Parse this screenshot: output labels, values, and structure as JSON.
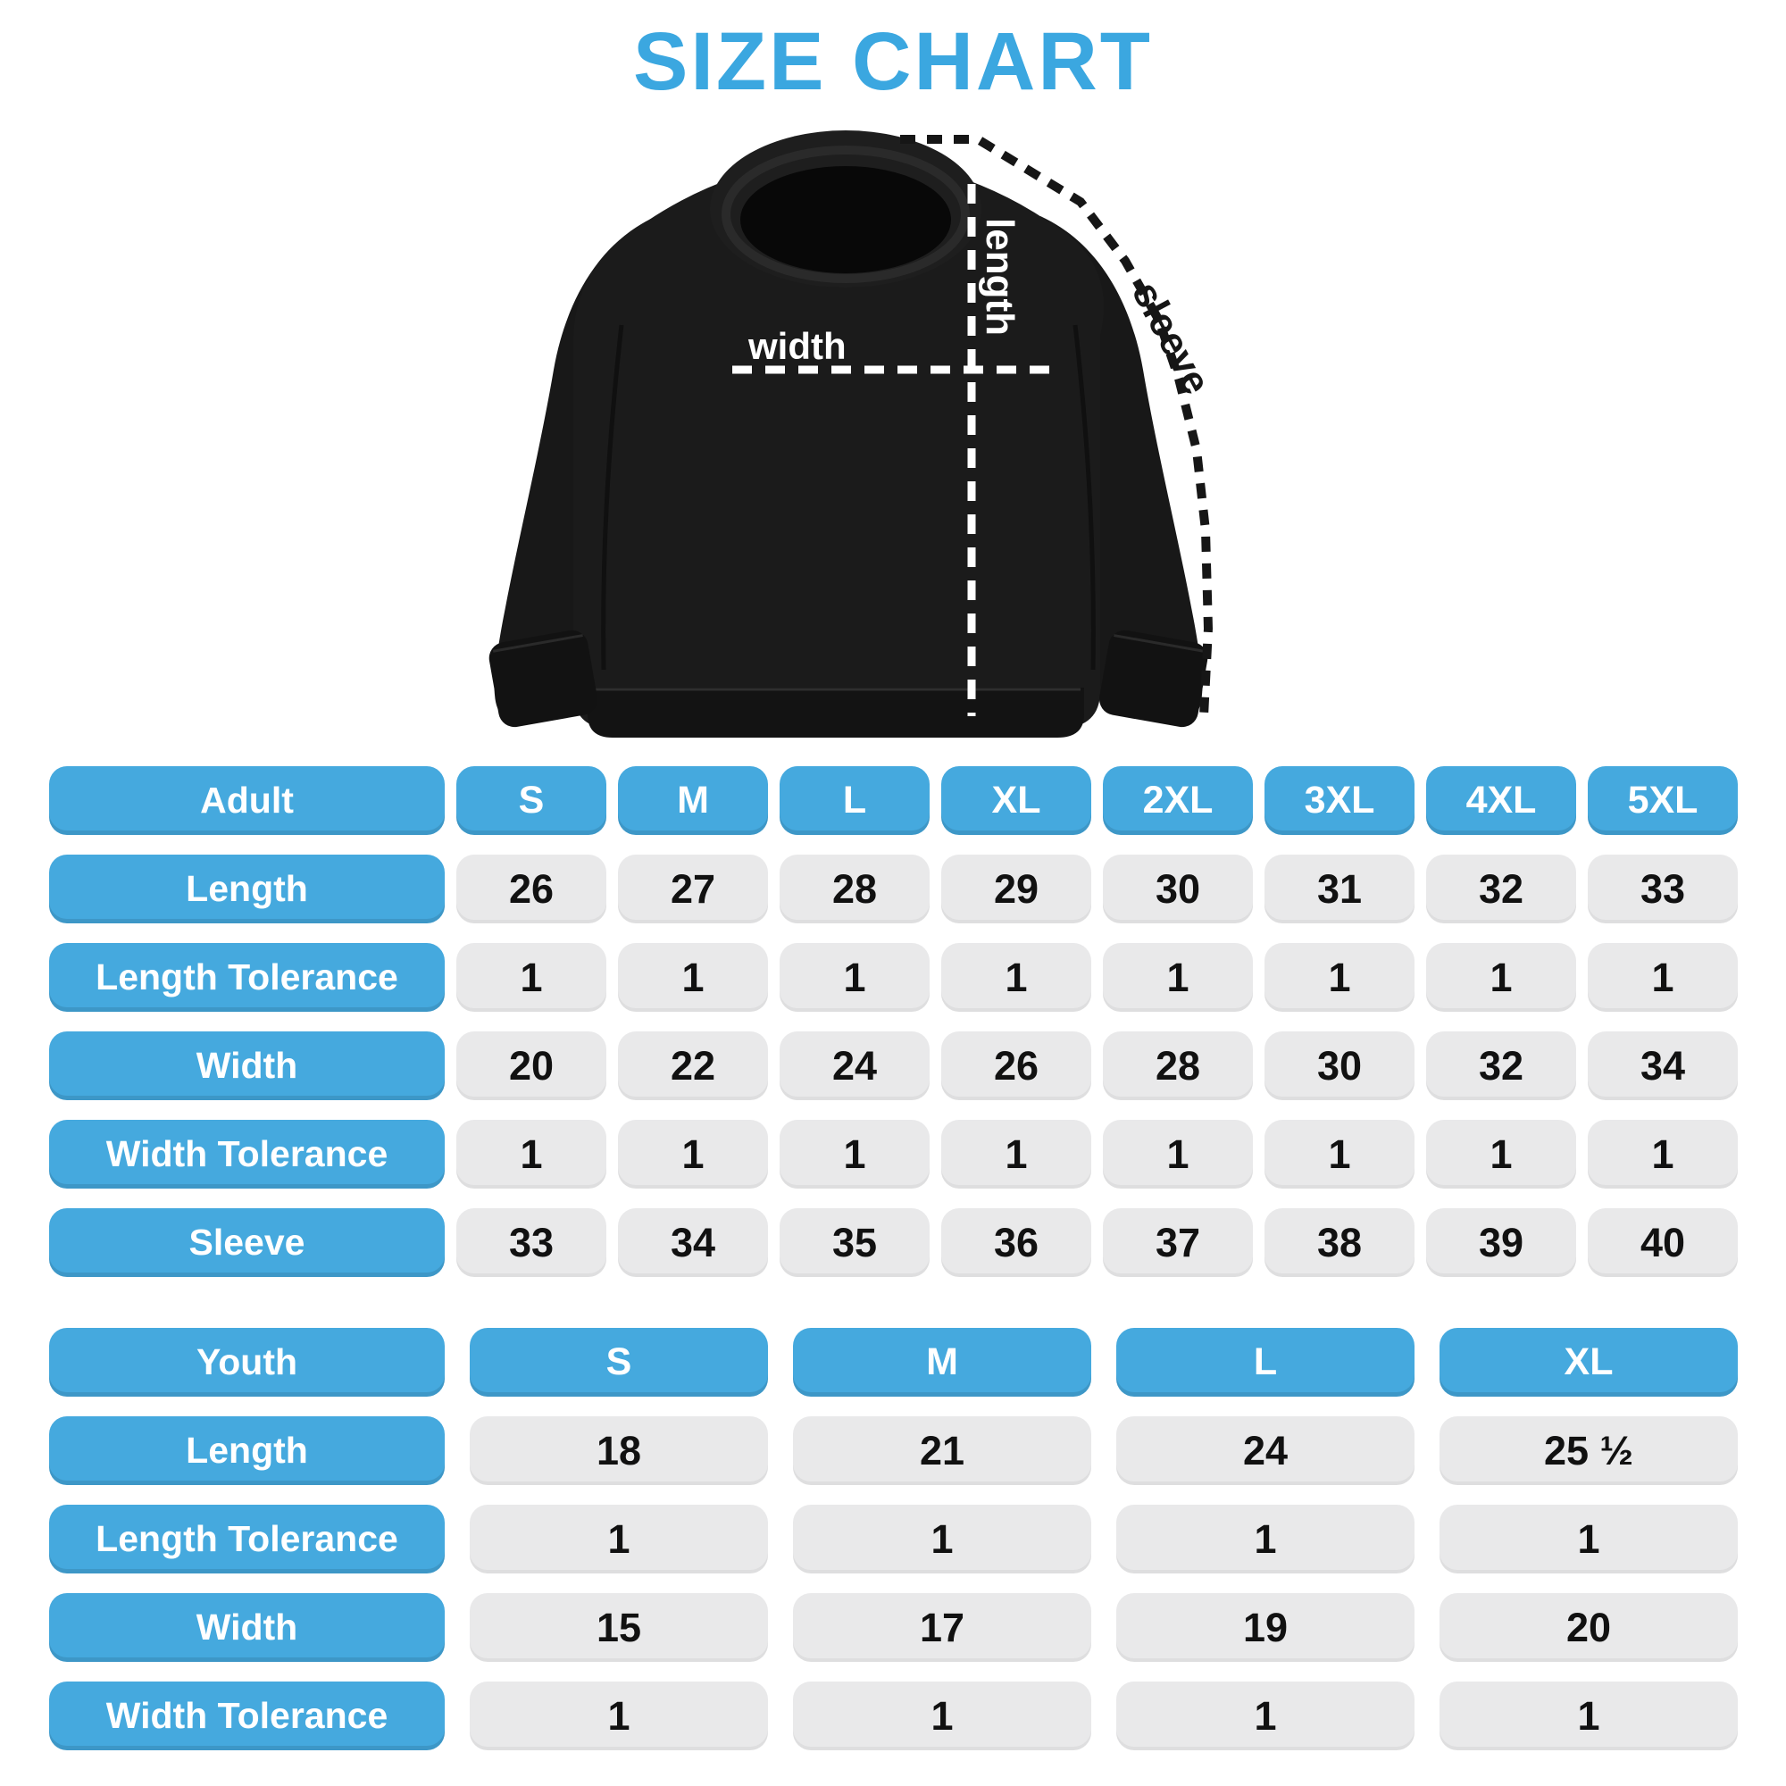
{
  "title": "SIZE CHART",
  "colors": {
    "accent_blue": "#45A9DE",
    "title_blue": "#3BA7E0",
    "cell_grey": "#E9E9EA",
    "value_text": "#111111",
    "garment_black": "#1B1B1B"
  },
  "diagram": {
    "garment": "crewneck-sweatshirt",
    "labels": {
      "length": "length",
      "width": "width",
      "sleeve": "sleeve"
    }
  },
  "adult_table": {
    "header": {
      "label": "Adult",
      "sizes": [
        "S",
        "M",
        "L",
        "XL",
        "2XL",
        "3XL",
        "4XL",
        "5XL"
      ]
    },
    "rows": [
      {
        "label": "Length",
        "values": [
          "26",
          "27",
          "28",
          "29",
          "30",
          "31",
          "32",
          "33"
        ]
      },
      {
        "label": "Length Tolerance",
        "values": [
          "1",
          "1",
          "1",
          "1",
          "1",
          "1",
          "1",
          "1"
        ]
      },
      {
        "label": "Width",
        "values": [
          "20",
          "22",
          "24",
          "26",
          "28",
          "30",
          "32",
          "34"
        ]
      },
      {
        "label": "Width Tolerance",
        "values": [
          "1",
          "1",
          "1",
          "1",
          "1",
          "1",
          "1",
          "1"
        ]
      },
      {
        "label": "Sleeve",
        "values": [
          "33",
          "34",
          "35",
          "36",
          "37",
          "38",
          "39",
          "40"
        ]
      }
    ]
  },
  "youth_table": {
    "header": {
      "label": "Youth",
      "sizes": [
        "S",
        "M",
        "L",
        "XL"
      ]
    },
    "rows": [
      {
        "label": "Length",
        "values": [
          "18",
          "21",
          "24",
          "25 ½"
        ]
      },
      {
        "label": "Length Tolerance",
        "values": [
          "1",
          "1",
          "1",
          "1"
        ]
      },
      {
        "label": "Width",
        "values": [
          "15",
          "17",
          "19",
          "20"
        ]
      },
      {
        "label": "Width Tolerance",
        "values": [
          "1",
          "1",
          "1",
          "1"
        ]
      }
    ]
  }
}
